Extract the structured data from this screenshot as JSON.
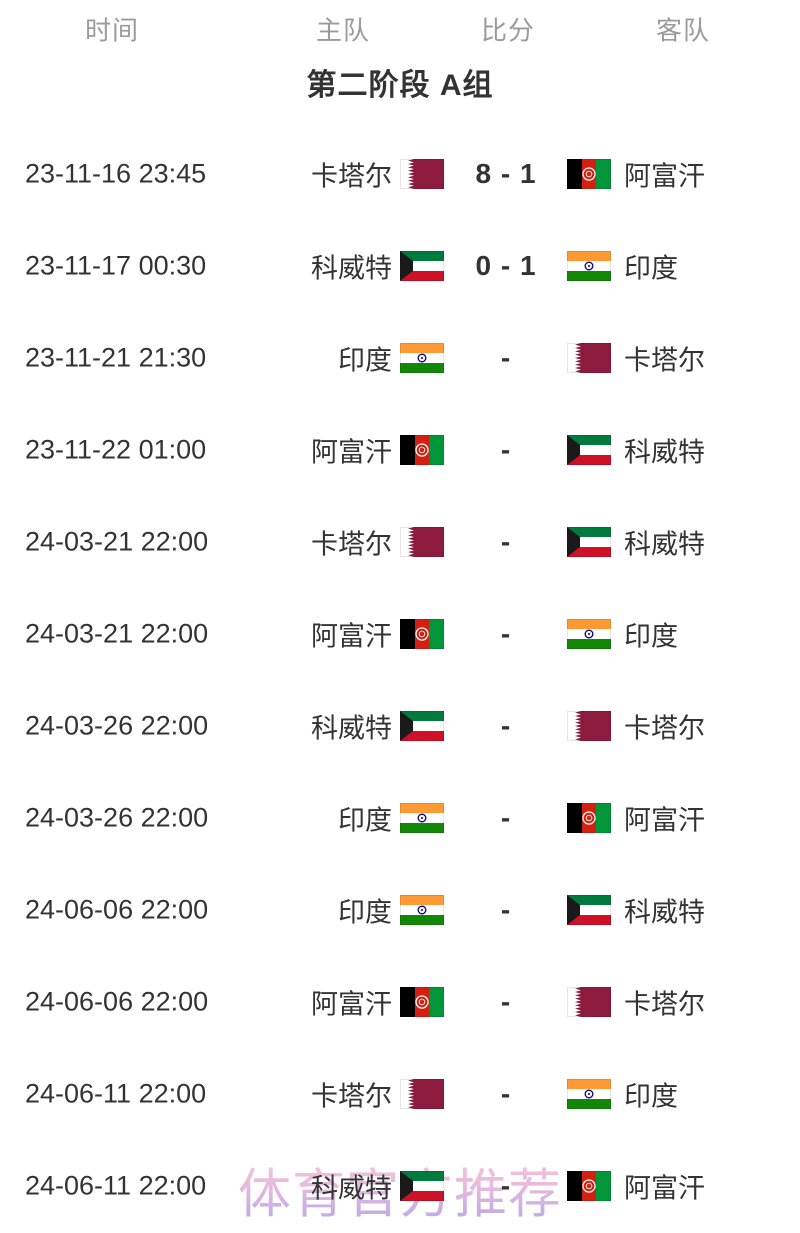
{
  "header": {
    "time": "时间",
    "home": "主队",
    "score": "比分",
    "away": "客队"
  },
  "group_title": "第二阶段 A组",
  "matches": [
    {
      "date": "23-11-16 23:45",
      "home": "卡塔尔",
      "home_flag": "qatar",
      "score": "8 - 1",
      "away": "阿富汗",
      "away_flag": "afghanistan"
    },
    {
      "date": "23-11-17 00:30",
      "home": "科威特",
      "home_flag": "kuwait",
      "score": "0 - 1",
      "away": "印度",
      "away_flag": "india"
    },
    {
      "date": "23-11-21 21:30",
      "home": "印度",
      "home_flag": "india",
      "score": "-",
      "away": "卡塔尔",
      "away_flag": "qatar"
    },
    {
      "date": "23-11-22 01:00",
      "home": "阿富汗",
      "home_flag": "afghanistan",
      "score": "-",
      "away": "科威特",
      "away_flag": "kuwait"
    },
    {
      "date": "24-03-21 22:00",
      "home": "卡塔尔",
      "home_flag": "qatar",
      "score": "-",
      "away": "科威特",
      "away_flag": "kuwait"
    },
    {
      "date": "24-03-21 22:00",
      "home": "阿富汗",
      "home_flag": "afghanistan",
      "score": "-",
      "away": "印度",
      "away_flag": "india"
    },
    {
      "date": "24-03-26 22:00",
      "home": "科威特",
      "home_flag": "kuwait",
      "score": "-",
      "away": "卡塔尔",
      "away_flag": "qatar"
    },
    {
      "date": "24-03-26 22:00",
      "home": "印度",
      "home_flag": "india",
      "score": "-",
      "away": "阿富汗",
      "away_flag": "afghanistan"
    },
    {
      "date": "24-06-06 22:00",
      "home": "印度",
      "home_flag": "india",
      "score": "-",
      "away": "科威特",
      "away_flag": "kuwait"
    },
    {
      "date": "24-06-06 22:00",
      "home": "阿富汗",
      "home_flag": "afghanistan",
      "score": "-",
      "away": "卡塔尔",
      "away_flag": "qatar"
    },
    {
      "date": "24-06-11 22:00",
      "home": "卡塔尔",
      "home_flag": "qatar",
      "score": "-",
      "away": "印度",
      "away_flag": "india"
    },
    {
      "date": "24-06-11 22:00",
      "home": "科威特",
      "home_flag": "kuwait",
      "score": "-",
      "away": "阿富汗",
      "away_flag": "afghanistan"
    }
  ],
  "watermark": {
    "text": "体育官方推荐",
    "color_top": "#f6bcd2",
    "color_bottom": "#a99ae6"
  },
  "colors": {
    "header_text": "#9b9b9b",
    "body_text": "#333333",
    "qatar_maroon": "#8d1b3d",
    "kuwait_green": "#007a3d",
    "kuwait_red": "#ce1126",
    "kuwait_black": "#1a1a1a",
    "india_saffron": "#ff9933",
    "india_green": "#138808",
    "india_navy": "#000080",
    "afghan_black": "#000000",
    "afghan_red": "#d32011",
    "afghan_green": "#009639"
  }
}
